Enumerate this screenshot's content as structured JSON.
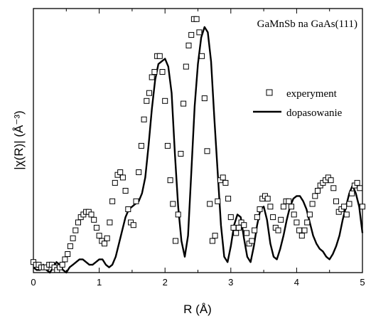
{
  "chart_data": {
    "type": "line",
    "title": "GaMnSb na GaAs(111)",
    "xlabel": "R (Å)",
    "ylabel": "|χ(R)| (Å⁻³)",
    "xlim": [
      0,
      5
    ],
    "ylim": [
      0,
      1.0
    ],
    "x_ticks": [
      "0",
      "1",
      "2",
      "3",
      "4",
      "5"
    ],
    "grid": false,
    "legend_position": "right",
    "series": [
      {
        "name": "experyment",
        "style": "open-square-markers",
        "color": "#000000",
        "x": [
          0.0,
          0.04,
          0.08,
          0.12,
          0.16,
          0.2,
          0.24,
          0.28,
          0.32,
          0.36,
          0.4,
          0.44,
          0.48,
          0.52,
          0.56,
          0.6,
          0.64,
          0.68,
          0.72,
          0.76,
          0.8,
          0.84,
          0.88,
          0.92,
          0.96,
          1.0,
          1.04,
          1.08,
          1.12,
          1.16,
          1.2,
          1.24,
          1.28,
          1.32,
          1.36,
          1.4,
          1.44,
          1.48,
          1.52,
          1.56,
          1.6,
          1.64,
          1.68,
          1.72,
          1.76,
          1.8,
          1.84,
          1.88,
          1.92,
          1.96,
          2.0,
          2.04,
          2.08,
          2.12,
          2.16,
          2.2,
          2.24,
          2.28,
          2.32,
          2.36,
          2.4,
          2.44,
          2.48,
          2.52,
          2.56,
          2.6,
          2.64,
          2.68,
          2.72,
          2.76,
          2.8,
          2.84,
          2.88,
          2.92,
          2.96,
          3.0,
          3.04,
          3.08,
          3.12,
          3.16,
          3.2,
          3.24,
          3.28,
          3.32,
          3.36,
          3.4,
          3.44,
          3.48,
          3.52,
          3.56,
          3.6,
          3.64,
          3.68,
          3.72,
          3.76,
          3.8,
          3.84,
          3.88,
          3.92,
          3.96,
          4.0,
          4.04,
          4.08,
          4.12,
          4.16,
          4.2,
          4.24,
          4.28,
          4.32,
          4.36,
          4.4,
          4.44,
          4.48,
          4.52,
          4.56,
          4.6,
          4.64,
          4.68,
          4.72,
          4.76,
          4.8,
          4.84,
          4.88,
          4.92,
          4.96,
          5.0
        ],
        "y": [
          0.04,
          0.03,
          0.03,
          0.02,
          0.02,
          0.02,
          0.03,
          0.03,
          0.02,
          0.01,
          0.02,
          0.03,
          0.05,
          0.07,
          0.1,
          0.13,
          0.16,
          0.19,
          0.21,
          0.22,
          0.23,
          0.23,
          0.22,
          0.2,
          0.17,
          0.14,
          0.12,
          0.11,
          0.13,
          0.19,
          0.27,
          0.34,
          0.37,
          0.38,
          0.36,
          0.31,
          0.24,
          0.19,
          0.18,
          0.27,
          0.38,
          0.48,
          0.58,
          0.65,
          0.68,
          0.74,
          0.76,
          0.82,
          0.82,
          0.76,
          0.65,
          0.48,
          0.35,
          0.26,
          0.12,
          0.22,
          0.45,
          0.64,
          0.78,
          0.86,
          0.9,
          0.96,
          0.96,
          0.91,
          0.82,
          0.66,
          0.46,
          0.26,
          0.12,
          0.14,
          0.27,
          0.35,
          0.36,
          0.34,
          0.28,
          0.21,
          0.17,
          0.15,
          0.17,
          0.19,
          0.18,
          0.15,
          0.11,
          0.12,
          0.16,
          0.21,
          0.24,
          0.28,
          0.29,
          0.28,
          0.25,
          0.21,
          0.17,
          0.16,
          0.2,
          0.25,
          0.27,
          0.27,
          0.25,
          0.22,
          0.19,
          0.16,
          0.14,
          0.16,
          0.19,
          0.22,
          0.26,
          0.29,
          0.31,
          0.33,
          0.34,
          0.35,
          0.36,
          0.35,
          0.32,
          0.27,
          0.23,
          0.24,
          0.25,
          0.22,
          0.26,
          0.3,
          0.33,
          0.34,
          0.32,
          0.25
        ]
      },
      {
        "name": "dopasowanie",
        "style": "solid-line",
        "color": "#000000",
        "x": [
          0.0,
          0.05,
          0.1,
          0.15,
          0.2,
          0.25,
          0.3,
          0.35,
          0.4,
          0.45,
          0.5,
          0.55,
          0.6,
          0.65,
          0.7,
          0.75,
          0.8,
          0.85,
          0.9,
          0.95,
          1.0,
          1.05,
          1.1,
          1.15,
          1.2,
          1.25,
          1.3,
          1.35,
          1.4,
          1.45,
          1.5,
          1.55,
          1.6,
          1.65,
          1.7,
          1.75,
          1.8,
          1.85,
          1.9,
          1.95,
          2.0,
          2.05,
          2.1,
          2.15,
          2.2,
          2.25,
          2.3,
          2.35,
          2.4,
          2.45,
          2.5,
          2.55,
          2.6,
          2.65,
          2.7,
          2.75,
          2.8,
          2.85,
          2.9,
          2.95,
          3.0,
          3.05,
          3.1,
          3.15,
          3.2,
          3.25,
          3.3,
          3.35,
          3.4,
          3.45,
          3.5,
          3.55,
          3.6,
          3.65,
          3.7,
          3.75,
          3.8,
          3.85,
          3.9,
          3.95,
          4.0,
          4.05,
          4.1,
          4.15,
          4.2,
          4.25,
          4.3,
          4.35,
          4.4,
          4.45,
          4.5,
          4.55,
          4.6,
          4.65,
          4.7,
          4.75,
          4.8,
          4.85,
          4.9,
          4.95,
          5.0
        ],
        "y": [
          0.02,
          0.01,
          0.01,
          0.03,
          0.01,
          0.0,
          0.02,
          0.04,
          0.03,
          0.01,
          0.0,
          0.02,
          0.03,
          0.04,
          0.05,
          0.05,
          0.04,
          0.03,
          0.03,
          0.04,
          0.05,
          0.05,
          0.03,
          0.02,
          0.03,
          0.06,
          0.11,
          0.16,
          0.21,
          0.24,
          0.25,
          0.26,
          0.27,
          0.3,
          0.36,
          0.48,
          0.62,
          0.73,
          0.79,
          0.8,
          0.81,
          0.78,
          0.68,
          0.45,
          0.25,
          0.12,
          0.06,
          0.14,
          0.38,
          0.63,
          0.79,
          0.89,
          0.93,
          0.91,
          0.8,
          0.58,
          0.38,
          0.18,
          0.06,
          0.04,
          0.1,
          0.18,
          0.22,
          0.21,
          0.13,
          0.06,
          0.04,
          0.1,
          0.18,
          0.24,
          0.25,
          0.2,
          0.11,
          0.06,
          0.05,
          0.09,
          0.14,
          0.2,
          0.25,
          0.28,
          0.29,
          0.29,
          0.27,
          0.24,
          0.19,
          0.14,
          0.11,
          0.09,
          0.08,
          0.06,
          0.05,
          0.07,
          0.1,
          0.14,
          0.2,
          0.25,
          0.3,
          0.33,
          0.3,
          0.25,
          0.15
        ]
      }
    ]
  }
}
